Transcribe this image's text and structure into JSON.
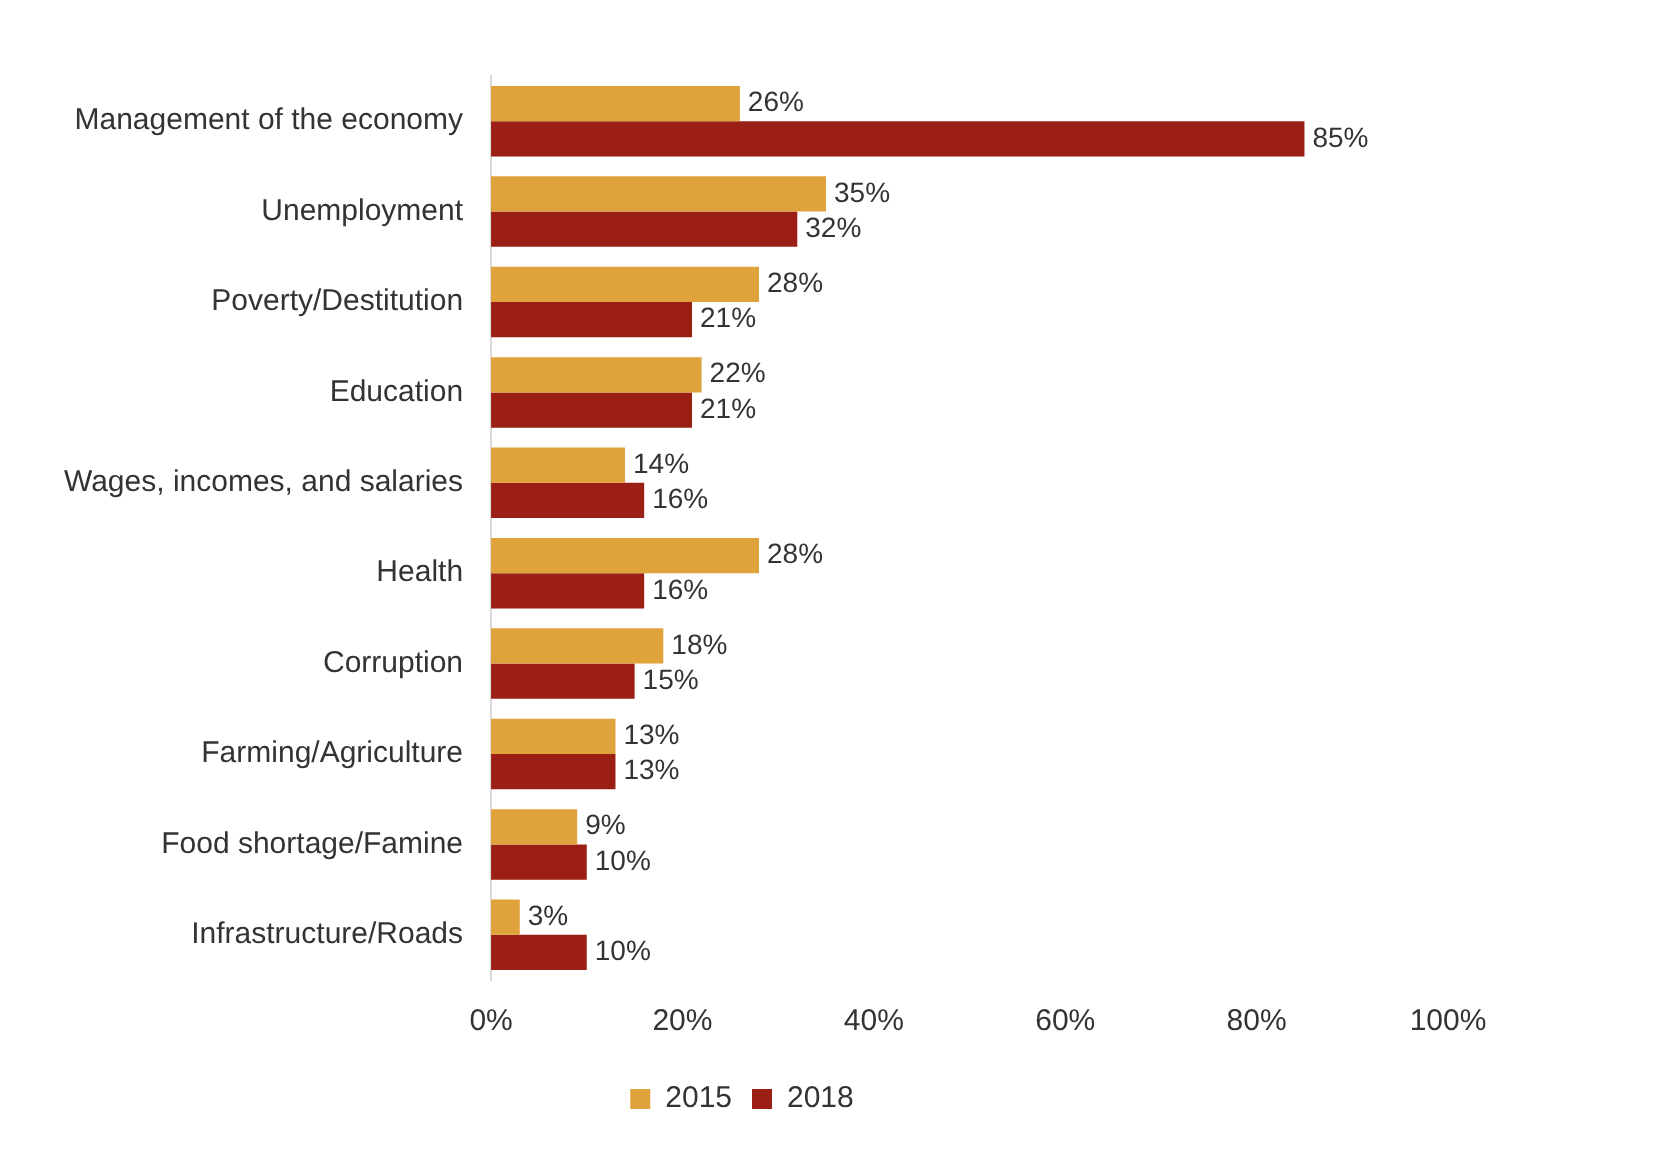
{
  "chart_data": {
    "type": "bar",
    "orientation": "horizontal",
    "categories": [
      "Management of the economy",
      "Unemployment",
      "Poverty/Destitution",
      "Education",
      "Wages, incomes, and salaries",
      "Health",
      "Corruption",
      "Farming/Agriculture",
      "Food shortage/Famine",
      "Infrastructure/Roads"
    ],
    "series": [
      {
        "name": "2015",
        "color": "#e0a23a",
        "values": [
          26,
          35,
          28,
          22,
          14,
          28,
          18,
          13,
          9,
          3
        ],
        "value_labels": [
          "26%",
          "35%",
          "28%",
          "22%",
          "14%",
          "28%",
          "18%",
          "13%",
          "9%",
          "3%"
        ]
      },
      {
        "name": "2018",
        "color": "#9c1f16",
        "values": [
          85,
          32,
          21,
          21,
          16,
          16,
          15,
          13,
          10,
          10
        ],
        "value_labels": [
          "85%",
          "32%",
          "21%",
          "21%",
          "16%",
          "16%",
          "15%",
          "13%",
          "10%",
          "10%"
        ]
      }
    ],
    "xlim": [
      0,
      100
    ],
    "xticks": [
      {
        "value": 0,
        "label": "0%"
      },
      {
        "value": 20,
        "label": "20%"
      },
      {
        "value": 40,
        "label": "40%"
      },
      {
        "value": 60,
        "label": "60%"
      },
      {
        "value": 80,
        "label": "80%"
      },
      {
        "value": 100,
        "label": "100%"
      }
    ],
    "grid": false,
    "legend": "bottom"
  }
}
